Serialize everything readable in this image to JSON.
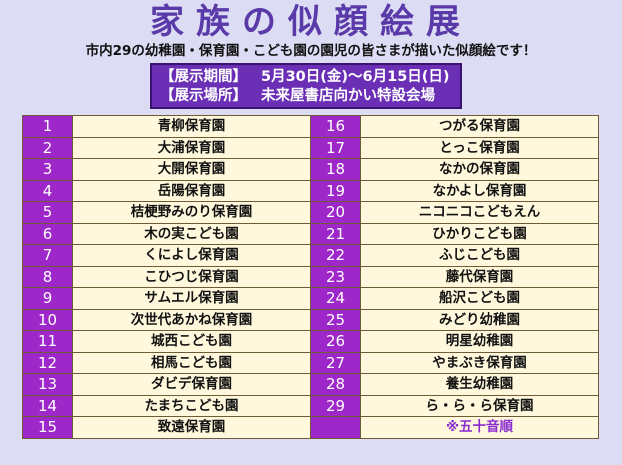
{
  "title": "家族の似顔絵展",
  "subtitle": "市内29の幼稚園・保育園・こども園の園児の皆さまが描いた似顔絵です！",
  "info": {
    "period_label": "【展示期間】",
    "period_value": "5月30日(金)～6月15日(日)",
    "place_label": "【展示場所】",
    "place_value": "未来屋書店向かい特設会場"
  },
  "left_rows": [
    {
      "num": "1",
      "name": "青柳保育園"
    },
    {
      "num": "2",
      "name": "大浦保育園"
    },
    {
      "num": "3",
      "name": "大開保育園"
    },
    {
      "num": "4",
      "name": "岳陽保育園"
    },
    {
      "num": "5",
      "name": "桔梗野みのり保育園"
    },
    {
      "num": "6",
      "name": "木の実こども園"
    },
    {
      "num": "7",
      "name": "くによし保育園"
    },
    {
      "num": "8",
      "name": "こひつじ保育園"
    },
    {
      "num": "9",
      "name": "サムエル保育園"
    },
    {
      "num": "10",
      "name": "次世代あかね保育園"
    },
    {
      "num": "11",
      "name": "城西こども園"
    },
    {
      "num": "12",
      "name": "相馬こども園"
    },
    {
      "num": "13",
      "name": "ダビデ保育園"
    },
    {
      "num": "14",
      "name": "たまちこども園"
    },
    {
      "num": "15",
      "name": "致遠保育園"
    }
  ],
  "right_rows": [
    {
      "num": "16",
      "name": "つがる保育園"
    },
    {
      "num": "17",
      "name": "とっこ保育園"
    },
    {
      "num": "18",
      "name": "なかの保育園"
    },
    {
      "num": "19",
      "name": "なかよし保育園"
    },
    {
      "num": "20",
      "name": "ニコニコこどもえん"
    },
    {
      "num": "21",
      "name": "ひかりこども園"
    },
    {
      "num": "22",
      "name": "ふじこども園"
    },
    {
      "num": "23",
      "name": "藤代保育園"
    },
    {
      "num": "24",
      "name": "船沢こども園"
    },
    {
      "num": "25",
      "name": "みどり幼稚園"
    },
    {
      "num": "26",
      "name": "明星幼稚園"
    },
    {
      "num": "27",
      "name": "やまぶき保育園"
    },
    {
      "num": "28",
      "name": "養生幼稚園"
    },
    {
      "num": "29",
      "name": "ら・ら・ら保育園"
    },
    {
      "num": "",
      "name": "※五十音順"
    }
  ],
  "colors": {
    "background": "#dcdcf4",
    "title": "#5a3aa8",
    "info_box": "#6a2fb5",
    "number_cell": "#9d27c8",
    "name_cell": "#fff8dc",
    "note_text": "#8a2bd0"
  }
}
